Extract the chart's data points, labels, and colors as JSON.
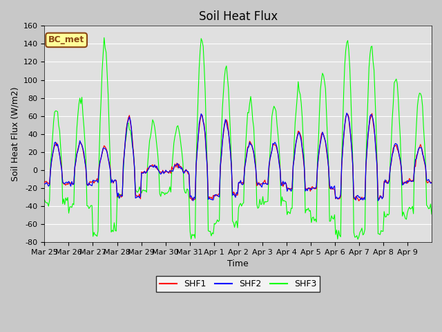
{
  "title": "Soil Heat Flux",
  "ylabel": "Soil Heat Flux (W/m2)",
  "xlabel": "Time",
  "ylim": [
    -80,
    160
  ],
  "yticks": [
    -80,
    -60,
    -40,
    -20,
    0,
    20,
    40,
    60,
    80,
    100,
    120,
    140,
    160
  ],
  "x_tick_labels": [
    "Mar 25",
    "Mar 26",
    "Mar 27",
    "Mar 28",
    "Mar 29",
    "Mar 30",
    "Mar 31",
    "Apr 1",
    "Apr 2",
    "Apr 3",
    "Apr 4",
    "Apr 5",
    "Apr 6",
    "Apr 7",
    "Apr 8",
    "Apr 9"
  ],
  "legend_labels": [
    "SHF1",
    "SHF2",
    "SHF3"
  ],
  "shf1_color": "#ff0000",
  "shf2_color": "#0000ff",
  "shf3_color": "#00ff00",
  "bc_met_label": "BC_met",
  "bc_met_bg": "#ffff99",
  "bc_met_border": "#8b4513",
  "plot_bg_color": "#e0e0e0",
  "fig_bg_color": "#c8c8c8",
  "grid_color": "#ffffff",
  "title_fontsize": 12,
  "axis_label_fontsize": 9,
  "tick_fontsize": 8,
  "day_amplitudes_shf12": [
    30,
    30,
    25,
    58,
    5,
    5,
    62,
    55,
    30,
    30,
    42,
    40,
    62,
    62,
    28,
    25
  ],
  "day_amplitudes_shf3": [
    70,
    80,
    140,
    50,
    50,
    50,
    145,
    115,
    75,
    70,
    91,
    110,
    145,
    140,
    100,
    85
  ]
}
